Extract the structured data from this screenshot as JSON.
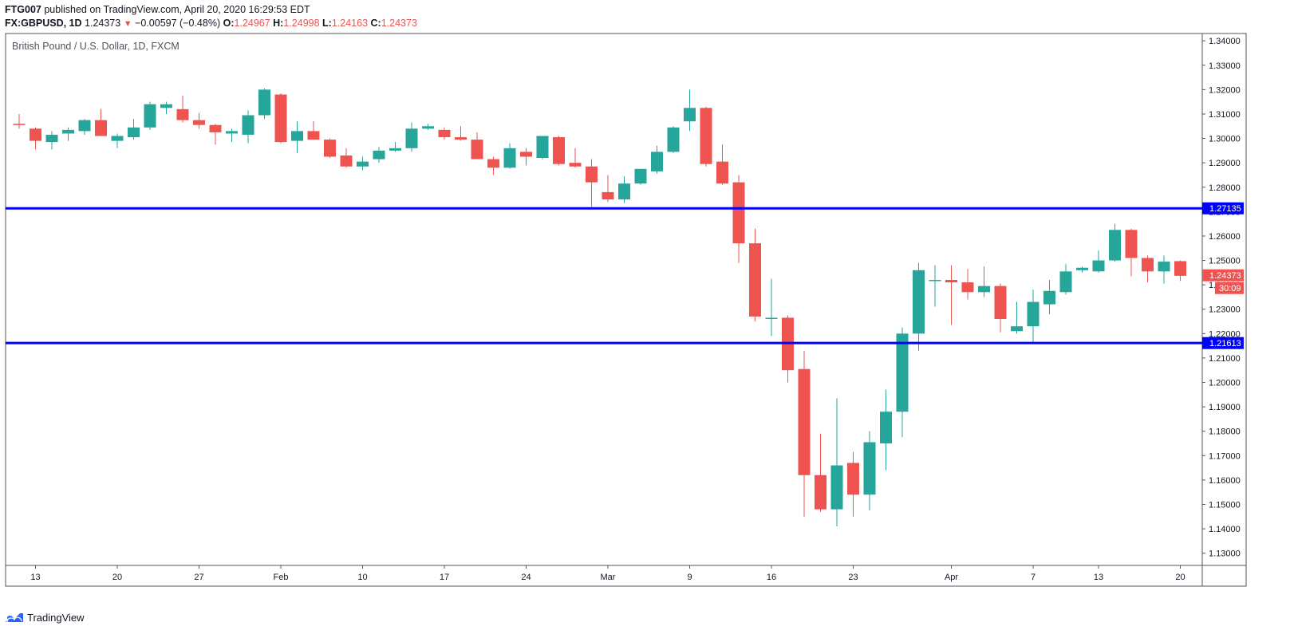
{
  "header": {
    "publisher": "FTG007",
    "published_text": "published on TradingView.com, April 20, 2020 16:29:53 EDT",
    "symbol": "FX:GBPUSD, 1D",
    "last": "1.24373",
    "change": "−0.00597 (−0.48%)",
    "o_label": "O:",
    "o": "1.24967",
    "h_label": "H:",
    "h": "1.24998",
    "l_label": "L:",
    "l": "1.24163",
    "c_label": "C:",
    "c": "1.24373"
  },
  "footer": {
    "brand": "TradingView"
  },
  "colors": {
    "up": "#26a69a",
    "down": "#ef5350",
    "hline": "#0000ff",
    "last_badge": "#ef5350",
    "hline_badge": "#0000ff"
  },
  "chart_data": {
    "type": "candlestick",
    "title": "British Pound / U.S. Dollar, 1D, FXCM",
    "ylim": [
      1.125,
      1.343
    ],
    "y_ticks": [
      "1.13000",
      "1.14000",
      "1.15000",
      "1.16000",
      "1.17000",
      "1.18000",
      "1.19000",
      "1.20000",
      "1.21000",
      "1.22000",
      "1.23000",
      "1.24000",
      "1.25000",
      "1.26000",
      "1.27000",
      "1.28000",
      "1.29000",
      "1.30000",
      "1.31000",
      "1.32000",
      "1.33000",
      "1.34000"
    ],
    "x_ticks": [
      {
        "label": "13",
        "index": 1
      },
      {
        "label": "20",
        "index": 6
      },
      {
        "label": "27",
        "index": 11
      },
      {
        "label": "Feb",
        "index": 16
      },
      {
        "label": "10",
        "index": 21
      },
      {
        "label": "17",
        "index": 26
      },
      {
        "label": "24",
        "index": 31
      },
      {
        "label": "Mar",
        "index": 36
      },
      {
        "label": "9",
        "index": 41
      },
      {
        "label": "16",
        "index": 46
      },
      {
        "label": "23",
        "index": 51
      },
      {
        "label": "Apr",
        "index": 57
      },
      {
        "label": "7",
        "index": 62
      },
      {
        "label": "13",
        "index": 66
      },
      {
        "label": "20",
        "index": 71
      }
    ],
    "horizontal_lines": [
      {
        "value": 1.27135,
        "label": "1.27135"
      },
      {
        "value": 1.21613,
        "label": "1.21613"
      }
    ],
    "last_price": {
      "value": 1.24373,
      "label": "1.24373",
      "countdown": "30:09"
    },
    "candles": [
      {
        "o": 1.306,
        "h": 1.31,
        "l": 1.304,
        "c": 1.3055
      },
      {
        "o": 1.304,
        "h": 1.3045,
        "l": 1.2955,
        "c": 1.299
      },
      {
        "o": 1.2985,
        "h": 1.303,
        "l": 1.2955,
        "c": 1.3015
      },
      {
        "o": 1.302,
        "h": 1.3045,
        "l": 1.299,
        "c": 1.3035
      },
      {
        "o": 1.303,
        "h": 1.308,
        "l": 1.3015,
        "c": 1.3075
      },
      {
        "o": 1.3075,
        "h": 1.312,
        "l": 1.301,
        "c": 1.301
      },
      {
        "o": 1.299,
        "h": 1.302,
        "l": 1.296,
        "c": 1.301
      },
      {
        "o": 1.3005,
        "h": 1.308,
        "l": 1.2995,
        "c": 1.3045
      },
      {
        "o": 1.3045,
        "h": 1.315,
        "l": 1.3035,
        "c": 1.314
      },
      {
        "o": 1.3125,
        "h": 1.315,
        "l": 1.31,
        "c": 1.314
      },
      {
        "o": 1.312,
        "h": 1.3175,
        "l": 1.3065,
        "c": 1.3075
      },
      {
        "o": 1.3075,
        "h": 1.3105,
        "l": 1.304,
        "c": 1.3055
      },
      {
        "o": 1.3055,
        "h": 1.306,
        "l": 1.2975,
        "c": 1.3025
      },
      {
        "o": 1.302,
        "h": 1.304,
        "l": 1.2985,
        "c": 1.303
      },
      {
        "o": 1.3015,
        "h": 1.3115,
        "l": 1.298,
        "c": 1.3095
      },
      {
        "o": 1.3095,
        "h": 1.3205,
        "l": 1.308,
        "c": 1.32
      },
      {
        "o": 1.318,
        "h": 1.3185,
        "l": 1.298,
        "c": 1.2985
      },
      {
        "o": 1.299,
        "h": 1.307,
        "l": 1.294,
        "c": 1.303
      },
      {
        "o": 1.303,
        "h": 1.307,
        "l": 1.2995,
        "c": 1.2995
      },
      {
        "o": 1.2995,
        "h": 1.3,
        "l": 1.292,
        "c": 1.2925
      },
      {
        "o": 1.293,
        "h": 1.296,
        "l": 1.288,
        "c": 1.2885
      },
      {
        "o": 1.2885,
        "h": 1.2925,
        "l": 1.287,
        "c": 1.2905
      },
      {
        "o": 1.2915,
        "h": 1.2965,
        "l": 1.29,
        "c": 1.295
      },
      {
        "o": 1.295,
        "h": 1.2985,
        "l": 1.2945,
        "c": 1.296
      },
      {
        "o": 1.296,
        "h": 1.3065,
        "l": 1.2945,
        "c": 1.304
      },
      {
        "o": 1.304,
        "h": 1.306,
        "l": 1.3035,
        "c": 1.305
      },
      {
        "o": 1.3035,
        "h": 1.3045,
        "l": 1.2995,
        "c": 1.3005
      },
      {
        "o": 1.3005,
        "h": 1.305,
        "l": 1.299,
        "c": 1.2995
      },
      {
        "o": 1.2995,
        "h": 1.3025,
        "l": 1.2915,
        "c": 1.2915
      },
      {
        "o": 1.2915,
        "h": 1.2925,
        "l": 1.285,
        "c": 1.288
      },
      {
        "o": 1.288,
        "h": 1.298,
        "l": 1.2875,
        "c": 1.296
      },
      {
        "o": 1.2945,
        "h": 1.296,
        "l": 1.289,
        "c": 1.2925
      },
      {
        "o": 1.292,
        "h": 1.301,
        "l": 1.2915,
        "c": 1.301
      },
      {
        "o": 1.3005,
        "h": 1.301,
        "l": 1.289,
        "c": 1.2895
      },
      {
        "o": 1.29,
        "h": 1.296,
        "l": 1.288,
        "c": 1.2885
      },
      {
        "o": 1.2885,
        "h": 1.2915,
        "l": 1.272,
        "c": 1.282
      },
      {
        "o": 1.278,
        "h": 1.285,
        "l": 1.274,
        "c": 1.275
      },
      {
        "o": 1.275,
        "h": 1.2845,
        "l": 1.2735,
        "c": 1.2815
      },
      {
        "o": 1.2815,
        "h": 1.2875,
        "l": 1.281,
        "c": 1.2875
      },
      {
        "o": 1.2865,
        "h": 1.297,
        "l": 1.2855,
        "c": 1.2945
      },
      {
        "o": 1.2945,
        "h": 1.305,
        "l": 1.294,
        "c": 1.3045
      },
      {
        "o": 1.307,
        "h": 1.32,
        "l": 1.303,
        "c": 1.3125
      },
      {
        "o": 1.3125,
        "h": 1.313,
        "l": 1.2885,
        "c": 1.2895
      },
      {
        "o": 1.2905,
        "h": 1.2975,
        "l": 1.281,
        "c": 1.2815
      },
      {
        "o": 1.282,
        "h": 1.285,
        "l": 1.249,
        "c": 1.257
      },
      {
        "o": 1.257,
        "h": 1.263,
        "l": 1.225,
        "c": 1.227
      },
      {
        "o": 1.226,
        "h": 1.2425,
        "l": 1.219,
        "c": 1.2265
      },
      {
        "o": 1.2265,
        "h": 1.2275,
        "l": 1.2,
        "c": 1.205
      },
      {
        "o": 1.2055,
        "h": 1.213,
        "l": 1.145,
        "c": 1.162
      },
      {
        "o": 1.162,
        "h": 1.179,
        "l": 1.147,
        "c": 1.148
      },
      {
        "o": 1.148,
        "h": 1.1935,
        "l": 1.141,
        "c": 1.166
      },
      {
        "o": 1.167,
        "h": 1.1715,
        "l": 1.145,
        "c": 1.154
      },
      {
        "o": 1.154,
        "h": 1.18,
        "l": 1.1475,
        "c": 1.1755
      },
      {
        "o": 1.175,
        "h": 1.197,
        "l": 1.164,
        "c": 1.188
      },
      {
        "o": 1.188,
        "h": 1.2225,
        "l": 1.1775,
        "c": 1.22
      },
      {
        "o": 1.22,
        "h": 1.249,
        "l": 1.213,
        "c": 1.246
      },
      {
        "o": 1.242,
        "h": 1.248,
        "l": 1.231,
        "c": 1.242
      },
      {
        "o": 1.242,
        "h": 1.248,
        "l": 1.2235,
        "c": 1.241
      },
      {
        "o": 1.241,
        "h": 1.2465,
        "l": 1.234,
        "c": 1.237
      },
      {
        "o": 1.237,
        "h": 1.2475,
        "l": 1.235,
        "c": 1.2395
      },
      {
        "o": 1.2395,
        "h": 1.2405,
        "l": 1.2205,
        "c": 1.226
      },
      {
        "o": 1.221,
        "h": 1.233,
        "l": 1.22,
        "c": 1.223
      },
      {
        "o": 1.223,
        "h": 1.238,
        "l": 1.2165,
        "c": 1.233
      },
      {
        "o": 1.232,
        "h": 1.242,
        "l": 1.228,
        "c": 1.2375
      },
      {
        "o": 1.237,
        "h": 1.2485,
        "l": 1.236,
        "c": 1.2455
      },
      {
        "o": 1.246,
        "h": 1.2475,
        "l": 1.245,
        "c": 1.247
      },
      {
        "o": 1.2455,
        "h": 1.254,
        "l": 1.245,
        "c": 1.25
      },
      {
        "o": 1.25,
        "h": 1.265,
        "l": 1.2495,
        "c": 1.2625
      },
      {
        "o": 1.2625,
        "h": 1.263,
        "l": 1.2435,
        "c": 1.251
      },
      {
        "o": 1.251,
        "h": 1.252,
        "l": 1.241,
        "c": 1.2455
      },
      {
        "o": 1.2455,
        "h": 1.252,
        "l": 1.2405,
        "c": 1.2495
      },
      {
        "o": 1.2497,
        "h": 1.25,
        "l": 1.2416,
        "c": 1.2437
      }
    ]
  }
}
